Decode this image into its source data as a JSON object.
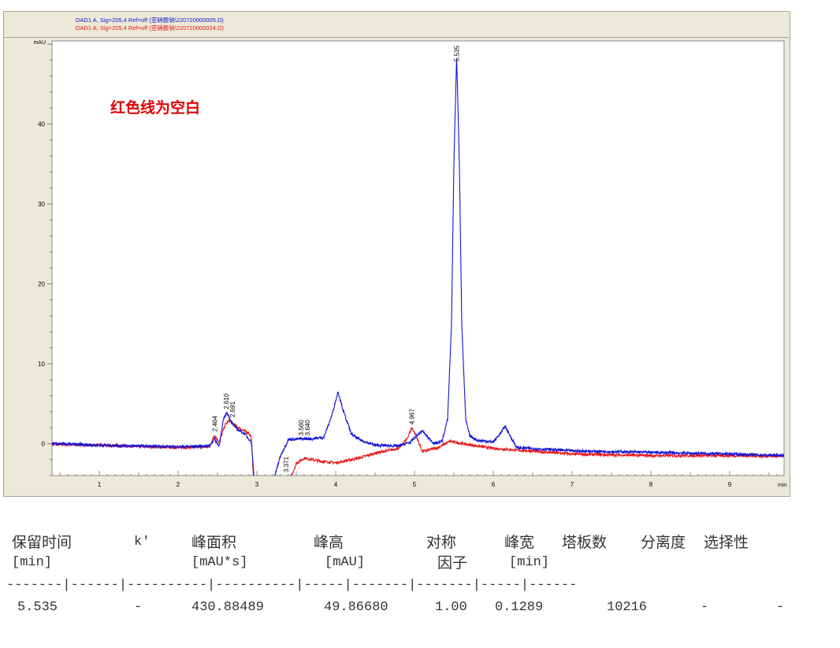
{
  "chart_data": {
    "type": "line",
    "legend": [
      "DAD1 A, Sig=205,4 Ref=off (亚硝酸钠\\220720000005.D)",
      "DAD1 A, Sig=205,4 Ref=off (亚硝酸钠\\220720000024.D)"
    ],
    "legend_placement": "top",
    "ylabel": "mAU",
    "xlabel": "min",
    "xlim": [
      0.4,
      9.69
    ],
    "ylim": [
      -4,
      50.4
    ],
    "xticks": [
      1,
      2,
      3,
      4,
      5,
      6,
      7,
      8,
      9
    ],
    "yticks": [
      0,
      10,
      20,
      30,
      40
    ],
    "annotation": "红色线为空白",
    "colors": {
      "blue": "#1515d8",
      "red": "#e81818"
    },
    "series": [
      {
        "color": "#1515d8",
        "points": [
          [
            0.4,
            0
          ],
          [
            1.0,
            -0.2
          ],
          [
            1.5,
            -0.3
          ],
          [
            2.0,
            -0.4
          ],
          [
            2.4,
            -0.3
          ],
          [
            2.46,
            0.6
          ],
          [
            2.52,
            -0.3
          ],
          [
            2.58,
            3.2
          ],
          [
            2.62,
            3.9
          ],
          [
            2.69,
            2.5
          ],
          [
            2.75,
            1.8
          ],
          [
            2.85,
            1.2
          ],
          [
            2.93,
            0.2
          ],
          [
            2.97,
            -5
          ],
          [
            3.2,
            -5
          ],
          [
            3.3,
            -1.5
          ],
          [
            3.4,
            0.5
          ],
          [
            3.56,
            0.6
          ],
          [
            3.7,
            0.6
          ],
          [
            3.85,
            0.8
          ],
          [
            3.95,
            3.5
          ],
          [
            4.03,
            6.5
          ],
          [
            4.1,
            4
          ],
          [
            4.2,
            1.2
          ],
          [
            4.3,
            0.5
          ],
          [
            4.5,
            -0.2
          ],
          [
            4.8,
            -0.3
          ],
          [
            4.95,
            0.2
          ],
          [
            5.05,
            1.2
          ],
          [
            5.1,
            1.6
          ],
          [
            5.15,
            1.0
          ],
          [
            5.25,
            0
          ],
          [
            5.35,
            0.3
          ],
          [
            5.42,
            3
          ],
          [
            5.47,
            15
          ],
          [
            5.5,
            35
          ],
          [
            5.535,
            48.5
          ],
          [
            5.57,
            35
          ],
          [
            5.6,
            15
          ],
          [
            5.65,
            3
          ],
          [
            5.7,
            1
          ],
          [
            5.8,
            0.4
          ],
          [
            6.0,
            0.2
          ],
          [
            6.1,
            1.4
          ],
          [
            6.15,
            2.2
          ],
          [
            6.2,
            1.2
          ],
          [
            6.3,
            -0.5
          ],
          [
            7,
            -0.9
          ],
          [
            8,
            -1.1
          ],
          [
            9,
            -1.3
          ],
          [
            9.69,
            -1.5
          ]
        ]
      },
      {
        "color": "#e81818",
        "points": [
          [
            0.4,
            -0.1
          ],
          [
            1,
            -0.2
          ],
          [
            2,
            -0.5
          ],
          [
            2.4,
            -0.4
          ],
          [
            2.46,
            1.1
          ],
          [
            2.52,
            0.2
          ],
          [
            2.6,
            2.4
          ],
          [
            2.65,
            2.9
          ],
          [
            2.7,
            2.4
          ],
          [
            2.8,
            1.8
          ],
          [
            2.9,
            1.3
          ],
          [
            2.93,
            0.8
          ],
          [
            2.96,
            -5
          ],
          [
            3.4,
            -5
          ],
          [
            3.5,
            -2.5
          ],
          [
            3.6,
            -1.8
          ],
          [
            3.8,
            -2.2
          ],
          [
            4.0,
            -2.4
          ],
          [
            4.3,
            -1.8
          ],
          [
            4.5,
            -1.2
          ],
          [
            4.8,
            -0.6
          ],
          [
            4.9,
            0.5
          ],
          [
            4.967,
            2.0
          ],
          [
            5.02,
            1.0
          ],
          [
            5.1,
            -1
          ],
          [
            5.3,
            -0.5
          ],
          [
            5.45,
            0.3
          ],
          [
            5.6,
            0
          ],
          [
            6,
            -0.6
          ],
          [
            7,
            -1.3
          ],
          [
            8,
            -1.5
          ],
          [
            9,
            -1.5
          ],
          [
            9.69,
            -1.6
          ]
        ]
      }
    ],
    "peak_labels": [
      {
        "t": "2.464",
        "x": 2.464,
        "y": 1.1
      },
      {
        "t": "2.610",
        "x": 2.61,
        "y": 3.9
      },
      {
        "t": "2.691",
        "x": 2.691,
        "y": 2.9
      },
      {
        "t": "3.371",
        "x": 3.371,
        "y": -4
      },
      {
        "t": "3.560",
        "x": 3.56,
        "y": 0.6
      },
      {
        "t": "3.640",
        "x": 3.64,
        "y": 0.6
      },
      {
        "t": "4.967",
        "x": 4.967,
        "y": 2.0
      },
      {
        "t": "5.535",
        "x": 5.535,
        "y": 48.5
      }
    ]
  },
  "table": {
    "headers": [
      "保留时间",
      "k'",
      "峰面积",
      "峰高",
      "对称",
      "峰宽",
      "塔板数",
      "分离度",
      "选择性"
    ],
    "units": [
      "[min]",
      "[mAU*s]",
      "[mAU]",
      "因子",
      "[min]"
    ],
    "separator": "-------|------|----------|----------|-----|-------|-------|-----|------",
    "row": [
      "5.535",
      "-",
      "430.88489",
      "49.86680",
      "1.00",
      "0.1289",
      "10216",
      "-",
      "-"
    ]
  }
}
